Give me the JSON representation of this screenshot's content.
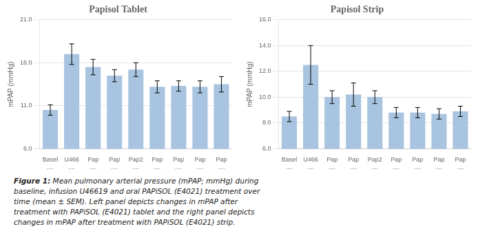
{
  "chart_data": [
    {
      "type": "bar",
      "title": "Papisol Tablet",
      "ylabel": "mPAP (mmHg)",
      "categories": [
        "Basel\n....",
        "U466\n....",
        "Pap\n....",
        "Pap\n....",
        "Pap2\n....",
        "Pap\n....",
        "Pap\n....",
        "Pap\n....",
        "Pap\n...."
      ],
      "values": [
        10.5,
        17.0,
        15.5,
        14.5,
        15.2,
        13.2,
        13.3,
        13.2,
        13.5
      ],
      "errors": [
        0.6,
        1.2,
        0.9,
        0.7,
        0.8,
        0.7,
        0.6,
        0.7,
        0.9
      ],
      "color": "#a8c4e0",
      "ylim": [
        6.0,
        21.0
      ],
      "yticks": [
        {
          "value": 6.0,
          "label": "6.0"
        },
        {
          "value": 11.0,
          "label": "11.0"
        },
        {
          "value": 16.0,
          "label": "16.0"
        },
        {
          "value": 21.0,
          "label": "21.0"
        }
      ],
      "grid": true
    },
    {
      "type": "bar",
      "title": "Papisol Strip",
      "ylabel": "mPAP (mmHg)",
      "categories": [
        "Basel\n....",
        "U466\n....",
        "Pap\n....",
        "Pap\n....",
        "Pap2\n....",
        "Pap\n....",
        "Pap\n....",
        "Pap\n....",
        "Pap\n...."
      ],
      "values": [
        8.5,
        12.5,
        10.0,
        10.2,
        10.0,
        8.8,
        8.8,
        8.7,
        8.9
      ],
      "errors": [
        0.4,
        1.5,
        0.5,
        0.9,
        0.5,
        0.4,
        0.4,
        0.4,
        0.4
      ],
      "color": "#a8c4e0",
      "ylim": [
        6.0,
        16.0
      ],
      "yticks": [
        {
          "value": 6.0,
          "label": "6.0"
        },
        {
          "value": 8.0,
          "label": "8.0"
        },
        {
          "value": 10.0,
          "label": "10.0"
        },
        {
          "value": 12.0,
          "label": "12.0"
        },
        {
          "value": 14.0,
          "label": "14.0"
        },
        {
          "value": 16.0,
          "label": "16.0"
        }
      ],
      "grid": true
    }
  ],
  "caption": "Figure 1: Mean pulmonary arterial pressure (mPAP; mmHg) during\nbaseline, infusion U46619 and oral PAPiSOL (E4021) treatment over\ntime (mean ± SEM). Left panel depicts changes in mPAP after\ntreatment with PAPiSOL (E4021) tablet and the right panel depicts\nchanges in mPAP after treatment with PAPiSOL (E4021) strip."
}
